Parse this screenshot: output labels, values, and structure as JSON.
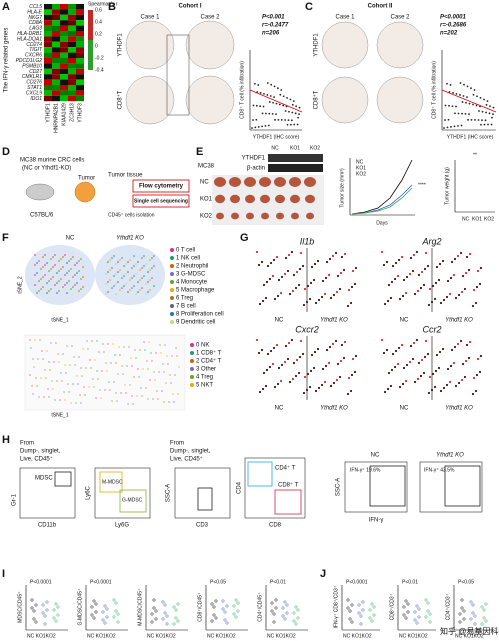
{
  "A": {
    "letter": "A",
    "ylabel": "The IFN-γ related genes",
    "genes": [
      "CCL5",
      "HLA-E",
      "NKG7",
      "CD8A",
      "LAG3",
      "HLA-DRB1",
      "HLA-DQA1",
      "CD274",
      "TIGIT",
      "CXCR6",
      "PDCD1LG2",
      "PSMB10",
      "CD27",
      "CMKLR1",
      "CD276",
      "STAT1",
      "CXCL9",
      "IDO1"
    ],
    "columns": [
      "YTHDF1",
      "HNRNPA2B1",
      "KIAA1429",
      "ZC3H13",
      "YTHDF3"
    ],
    "legend_title": "Spearman's r",
    "legend_ticks": [
      "0.6",
      "0.4",
      "0.2",
      "0",
      "-0.2",
      "-0.4"
    ]
  },
  "B": {
    "letter": "B",
    "title": "Cohort I",
    "case1": "Case 1",
    "case2": "Case 2",
    "row1": "YTHDF1",
    "row2": "CD8⁺T",
    "stats": [
      "P<0.001",
      "r=-0.2477",
      "n=206"
    ],
    "ylabel": "CD8⁺ T cell (% infiltration)",
    "xlabel": "YTHDF1 (IHC score)"
  },
  "C": {
    "letter": "C",
    "title": "Cohort II",
    "case1": "Case 1",
    "case2": "Case 2",
    "row1": "YTHDF1",
    "row2": "CD8⁺T",
    "stats": [
      "P<0.0001",
      "r=-0.2686",
      "n=202"
    ],
    "ylabel": "CD8⁺ T cell (% infiltration)",
    "xlabel": "YTHDF1 (IHC score)"
  },
  "D": {
    "letter": "D",
    "line1": "MC38 murine CRC cells",
    "line2": "(NC or Ythdf1-KO)",
    "mouse": "C57BL/6",
    "tumor": "Tumor",
    "tissue": "Tumor tissue",
    "flow": "Flow cytometry",
    "sc": "Single cell sequencing",
    "cd45": "CD45⁺ cells isolation"
  },
  "E": {
    "letter": "E",
    "blot": [
      "YTHDF1",
      "β-actin"
    ],
    "lanes": [
      "NC",
      "KO1",
      "KO2"
    ],
    "cell": "MC38",
    "rows": [
      "NC",
      "KO1",
      "KO2"
    ],
    "size_label": "Tumor size (mm³)",
    "days": "Days",
    "weight_label": "Tumor weight (g)",
    "sig1": "****",
    "sig2": "**",
    "legend": [
      "NC",
      "KO1",
      "KO2"
    ]
  },
  "F": {
    "letter": "F",
    "nc": "NC",
    "ko": "Ythdf1 KO",
    "axis_x": "tSNE_1",
    "axis_y": "tSNE_2",
    "clusters": [
      "0  T cell",
      "1  NK cell",
      "2  Neutrophil",
      "3  G-MDSC",
      "4  Monocyte",
      "5  Macrophage",
      "6  Treg",
      "7  B cell",
      "8  Proliferation cell",
      "9  Dendritic cell"
    ],
    "subclusters": [
      "0  NK",
      "1  CD8⁺ T",
      "2  CD4⁺ T",
      "3  Other",
      "4  Treg",
      "5  NKT"
    ]
  },
  "G": {
    "letter": "G",
    "genes": [
      "Il1b",
      "Arg2",
      "Cxcr2",
      "Ccr2"
    ],
    "nc": "NC",
    "ko": "Ythdf1 KO"
  },
  "H": {
    "letter": "H",
    "from1": "From",
    "gate1": "Dump-, singlet,",
    "gate2": "Live, CD45⁺",
    "mdsc": "MDSC",
    "gr1": "Gr-1",
    "cd11b": "CD11b",
    "ly6c": "Ly6C",
    "ly6g": "Ly6G",
    "mm": "M-MDSC",
    "gm": "G-MDSC",
    "from2": "From",
    "gate3": "Dump-, singlet,",
    "gate4": "Live, CD45⁺",
    "ssc": "SSC-A",
    "cd3": "CD3",
    "cd4": "CD4",
    "cd8": "CD8",
    "cd4t": "CD4⁺ T",
    "cd8t": "CD8⁺ T",
    "nc": "NC",
    "ko": "Ythdf1 KO",
    "ifn_nc": "IFN-γ⁺  19.6%",
    "ifn_ko": "IFN-γ⁺  43.5%",
    "ssc2": "SSC-A",
    "ifn": "IFN-γ"
  },
  "I": {
    "letter": "I",
    "plots": [
      {
        "ylabel": "MDSC/CD45⁺",
        "p": "P<0.0001"
      },
      {
        "ylabel": "G-MDSC/CD45⁺",
        "p": "P<0.0001"
      },
      {
        "ylabel": "M-MDSC/CD45⁺",
        "p": ""
      },
      {
        "ylabel": "CD8⁺/CD45⁺",
        "p": "P<0.05"
      },
      {
        "ylabel": "CD4⁺/CD45⁺",
        "p": "P<0.01"
      }
    ],
    "groups": "NC KO1KO2"
  },
  "J": {
    "letter": "J",
    "plots": [
      {
        "ylabel": "IFN-γ⁺ CD8⁺/CD3⁺",
        "p": "P<0.0001"
      },
      {
        "ylabel": "CD8⁺/CD3⁺",
        "p": "P<0.01"
      },
      {
        "ylabel": "CD4⁺/CD3⁺",
        "p": "P<0.05"
      }
    ],
    "groups": "NC KO1KO2"
  },
  "watermark": "知乎 @易基因科技"
}
